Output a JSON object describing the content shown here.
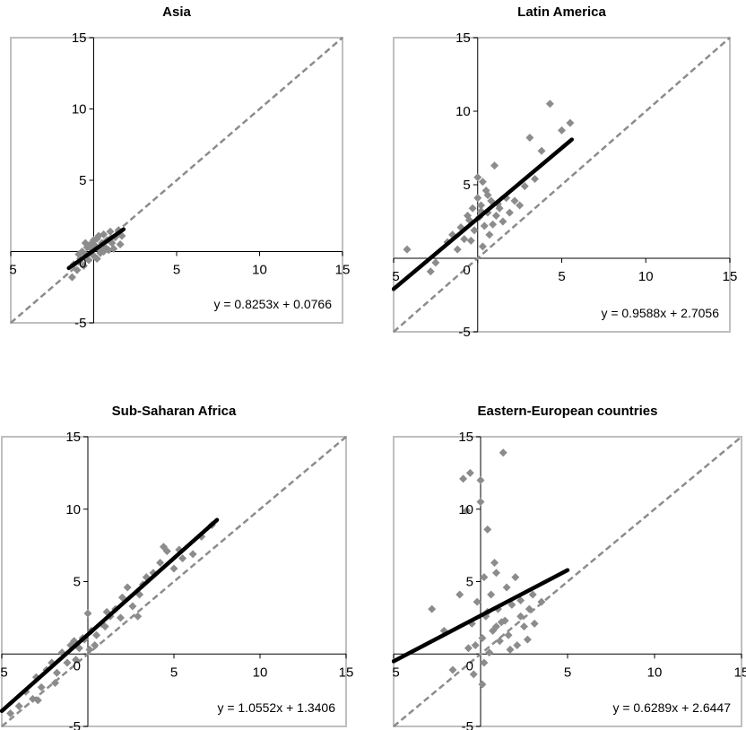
{
  "chart_data": [
    {
      "type": "scatter",
      "title": "Asia",
      "xlim": [
        -5,
        15
      ],
      "ylim": [
        -5,
        15
      ],
      "xticks": [
        "-5",
        "5",
        "10",
        "15"
      ],
      "yticks": [
        "-5",
        "5",
        "10",
        "15"
      ],
      "origin_label": "0",
      "equation": "y = 0.8253x + 0.0766",
      "slope": 0.8253,
      "intercept": 0.0766,
      "fit_range": [
        -1.5,
        1.8
      ],
      "reference_line": "y = x",
      "grid": false,
      "colors": {
        "points": "#8c8c8c",
        "fit": "#000000",
        "reference": "#8c8c8c",
        "frame": "#bfbfbf"
      },
      "points": [
        [
          -1.2,
          -0.9
        ],
        [
          -1.0,
          -1.3
        ],
        [
          -0.8,
          -0.5
        ],
        [
          -0.6,
          -1.0
        ],
        [
          -0.5,
          -0.2
        ],
        [
          -0.4,
          0.3
        ],
        [
          -0.3,
          -0.6
        ],
        [
          -0.2,
          0.5
        ],
        [
          -0.1,
          0.1
        ],
        [
          0.0,
          -0.3
        ],
        [
          0.1,
          0.4
        ],
        [
          0.2,
          0.9
        ],
        [
          0.3,
          0.2
        ],
        [
          0.4,
          -0.1
        ],
        [
          0.5,
          0.6
        ],
        [
          0.6,
          1.2
        ],
        [
          0.7,
          0.3
        ],
        [
          0.8,
          0.8
        ],
        [
          0.9,
          0.1
        ],
        [
          1.0,
          1.4
        ],
        [
          1.1,
          0.6
        ],
        [
          1.2,
          0.2
        ],
        [
          1.3,
          1.0
        ],
        [
          1.5,
          1.5
        ],
        [
          1.6,
          0.5
        ],
        [
          1.7,
          1.1
        ],
        [
          -0.7,
          0.0
        ],
        [
          -0.9,
          -0.2
        ],
        [
          0.0,
          0.8
        ],
        [
          0.3,
          1.1
        ],
        [
          -1.3,
          -1.8
        ],
        [
          0.6,
          0.0
        ],
        [
          -0.5,
          0.6
        ],
        [
          1.0,
          0.9
        ],
        [
          0.2,
          -0.5
        ]
      ]
    },
    {
      "type": "scatter",
      "title": "Latin America",
      "xlim": [
        -5,
        15
      ],
      "ylim": [
        -5,
        15
      ],
      "xticks": [
        "-5",
        "5",
        "10",
        "15"
      ],
      "yticks": [
        "-5",
        "5",
        "10",
        "15"
      ],
      "origin_label": "0",
      "equation": "y = 0.9588x + 2.7056",
      "slope": 0.9588,
      "intercept": 2.7056,
      "fit_range": [
        -5,
        5.6
      ],
      "reference_line": "y = x",
      "grid": false,
      "colors": {
        "points": "#8c8c8c",
        "fit": "#000000",
        "reference": "#8c8c8c",
        "frame": "#bfbfbf"
      },
      "points": [
        [
          -4.2,
          0.6
        ],
        [
          -2.8,
          -0.9
        ],
        [
          -2.5,
          -0.3
        ],
        [
          -1.8,
          1.1
        ],
        [
          -1.5,
          1.6
        ],
        [
          -1.2,
          0.6
        ],
        [
          -1.0,
          2.1
        ],
        [
          -0.8,
          1.3
        ],
        [
          -0.5,
          2.6
        ],
        [
          -0.3,
          3.4
        ],
        [
          -0.2,
          1.9
        ],
        [
          0.0,
          4.1
        ],
        [
          0.0,
          5.5
        ],
        [
          0.1,
          2.8
        ],
        [
          0.2,
          3.6
        ],
        [
          0.3,
          5.2
        ],
        [
          0.4,
          2.2
        ],
        [
          0.5,
          4.6
        ],
        [
          0.6,
          3.1
        ],
        [
          0.7,
          1.6
        ],
        [
          0.8,
          3.9
        ],
        [
          1.0,
          6.3
        ],
        [
          1.1,
          2.9
        ],
        [
          1.3,
          3.4
        ],
        [
          1.5,
          2.5
        ],
        [
          1.7,
          4.1
        ],
        [
          1.9,
          3.1
        ],
        [
          2.2,
          3.9
        ],
        [
          2.5,
          3.6
        ],
        [
          2.8,
          4.9
        ],
        [
          3.1,
          8.2
        ],
        [
          3.4,
          5.4
        ],
        [
          3.8,
          7.3
        ],
        [
          4.3,
          10.5
        ],
        [
          5.0,
          8.7
        ],
        [
          5.5,
          9.2
        ],
        [
          0.2,
          3.2
        ],
        [
          -0.4,
          1.2
        ],
        [
          0.9,
          2.3
        ],
        [
          0.3,
          0.8
        ],
        [
          -0.6,
          2.9
        ],
        [
          1.2,
          3.7
        ],
        [
          0.6,
          4.3
        ]
      ]
    },
    {
      "type": "scatter",
      "title": "Sub-Saharan Africa",
      "xlim": [
        -5,
        15
      ],
      "ylim": [
        -5,
        15
      ],
      "xticks": [
        "-5",
        "5",
        "10",
        "15"
      ],
      "yticks": [
        "-5",
        "5",
        "10",
        "15"
      ],
      "origin_label": "0",
      "equation": "y = 1.0552x + 1.3406",
      "slope": 1.0552,
      "intercept": 1.3406,
      "fit_range": [
        -5,
        7.5
      ],
      "reference_line": "y = x",
      "grid": false,
      "colors": {
        "points": "#8c8c8c",
        "fit": "#000000",
        "reference": "#8c8c8c",
        "frame": "#bfbfbf"
      },
      "points": [
        [
          -4.5,
          -4.1
        ],
        [
          -4.0,
          -3.6
        ],
        [
          -3.6,
          -2.6
        ],
        [
          -3.2,
          -3.1
        ],
        [
          -3.0,
          -1.6
        ],
        [
          -2.7,
          -2.3
        ],
        [
          -2.4,
          -1.1
        ],
        [
          -2.1,
          -0.6
        ],
        [
          -1.8,
          -1.3
        ],
        [
          -1.5,
          0.1
        ],
        [
          -1.2,
          -0.6
        ],
        [
          -1.0,
          0.6
        ],
        [
          -0.8,
          0.9
        ],
        [
          -0.5,
          0.4
        ],
        [
          -0.3,
          1.1
        ],
        [
          0.0,
          2.8
        ],
        [
          0.2,
          1.6
        ],
        [
          0.5,
          1.3
        ],
        [
          0.8,
          2.1
        ],
        [
          1.0,
          1.9
        ],
        [
          1.3,
          2.6
        ],
        [
          1.6,
          3.1
        ],
        [
          2.0,
          3.9
        ],
        [
          2.3,
          4.6
        ],
        [
          2.6,
          3.3
        ],
        [
          3.0,
          4.1
        ],
        [
          3.4,
          5.3
        ],
        [
          3.8,
          5.6
        ],
        [
          4.2,
          6.3
        ],
        [
          4.6,
          7.1
        ],
        [
          5.0,
          5.9
        ],
        [
          5.5,
          6.6
        ],
        [
          6.1,
          6.9
        ],
        [
          6.6,
          8.1
        ],
        [
          7.2,
          8.9
        ],
        [
          -0.7,
          -0.4
        ],
        [
          0.4,
          0.6
        ],
        [
          1.9,
          2.5
        ],
        [
          2.9,
          2.6
        ],
        [
          4.4,
          7.4
        ],
        [
          -1.9,
          -2.0
        ],
        [
          0.1,
          0.3
        ],
        [
          3.2,
          4.8
        ],
        [
          -2.9,
          -3.2
        ],
        [
          -0.2,
          1.0
        ],
        [
          1.1,
          2.9
        ],
        [
          5.3,
          7.2
        ]
      ]
    },
    {
      "type": "scatter",
      "title": "Eastern-European countries",
      "xlim": [
        -5,
        15
      ],
      "ylim": [
        -5,
        15
      ],
      "xticks": [
        "-5",
        "5",
        "10",
        "15"
      ],
      "yticks": [
        "-5",
        "5",
        "10",
        "15"
      ],
      "origin_label": "0",
      "equation": "y = 0.6289x + 2.6447",
      "slope": 0.6289,
      "intercept": 2.6447,
      "fit_range": [
        -5,
        5
      ],
      "reference_line": "y = x",
      "grid": false,
      "colors": {
        "points": "#8c8c8c",
        "fit": "#000000",
        "reference": "#8c8c8c",
        "frame": "#bfbfbf"
      },
      "points": [
        [
          -2.8,
          3.1
        ],
        [
          -2.1,
          1.6
        ],
        [
          -1.6,
          -1.1
        ],
        [
          -1.2,
          4.1
        ],
        [
          -1.0,
          12.1
        ],
        [
          -0.8,
          9.9
        ],
        [
          -0.6,
          12.5
        ],
        [
          -0.5,
          2.1
        ],
        [
          -0.3,
          0.6
        ],
        [
          -0.2,
          3.6
        ],
        [
          0.0,
          10.5
        ],
        [
          0.0,
          12.0
        ],
        [
          0.1,
          1.1
        ],
        [
          0.2,
          5.3
        ],
        [
          0.3,
          2.6
        ],
        [
          0.4,
          8.6
        ],
        [
          0.5,
          0.1
        ],
        [
          0.6,
          4.1
        ],
        [
          0.7,
          1.6
        ],
        [
          0.8,
          6.3
        ],
        [
          0.9,
          5.6
        ],
        [
          1.0,
          3.1
        ],
        [
          1.1,
          0.9
        ],
        [
          1.3,
          13.9
        ],
        [
          1.4,
          2.3
        ],
        [
          1.5,
          4.6
        ],
        [
          1.6,
          1.3
        ],
        [
          1.8,
          3.4
        ],
        [
          2.0,
          5.3
        ],
        [
          2.1,
          0.6
        ],
        [
          2.3,
          2.6
        ],
        [
          2.5,
          1.9
        ],
        [
          2.8,
          3.1
        ],
        [
          3.1,
          2.1
        ],
        [
          3.5,
          3.6
        ],
        [
          0.2,
          -0.6
        ],
        [
          -0.4,
          -1.4
        ],
        [
          0.9,
          1.9
        ],
        [
          1.7,
          0.3
        ],
        [
          2.7,
          1.0
        ],
        [
          0.4,
          2.9
        ],
        [
          -0.7,
          0.4
        ],
        [
          1.2,
          2.2
        ],
        [
          2.3,
          3.7
        ],
        [
          0.1,
          -2.1
        ],
        [
          3.0,
          4.1
        ]
      ]
    }
  ]
}
